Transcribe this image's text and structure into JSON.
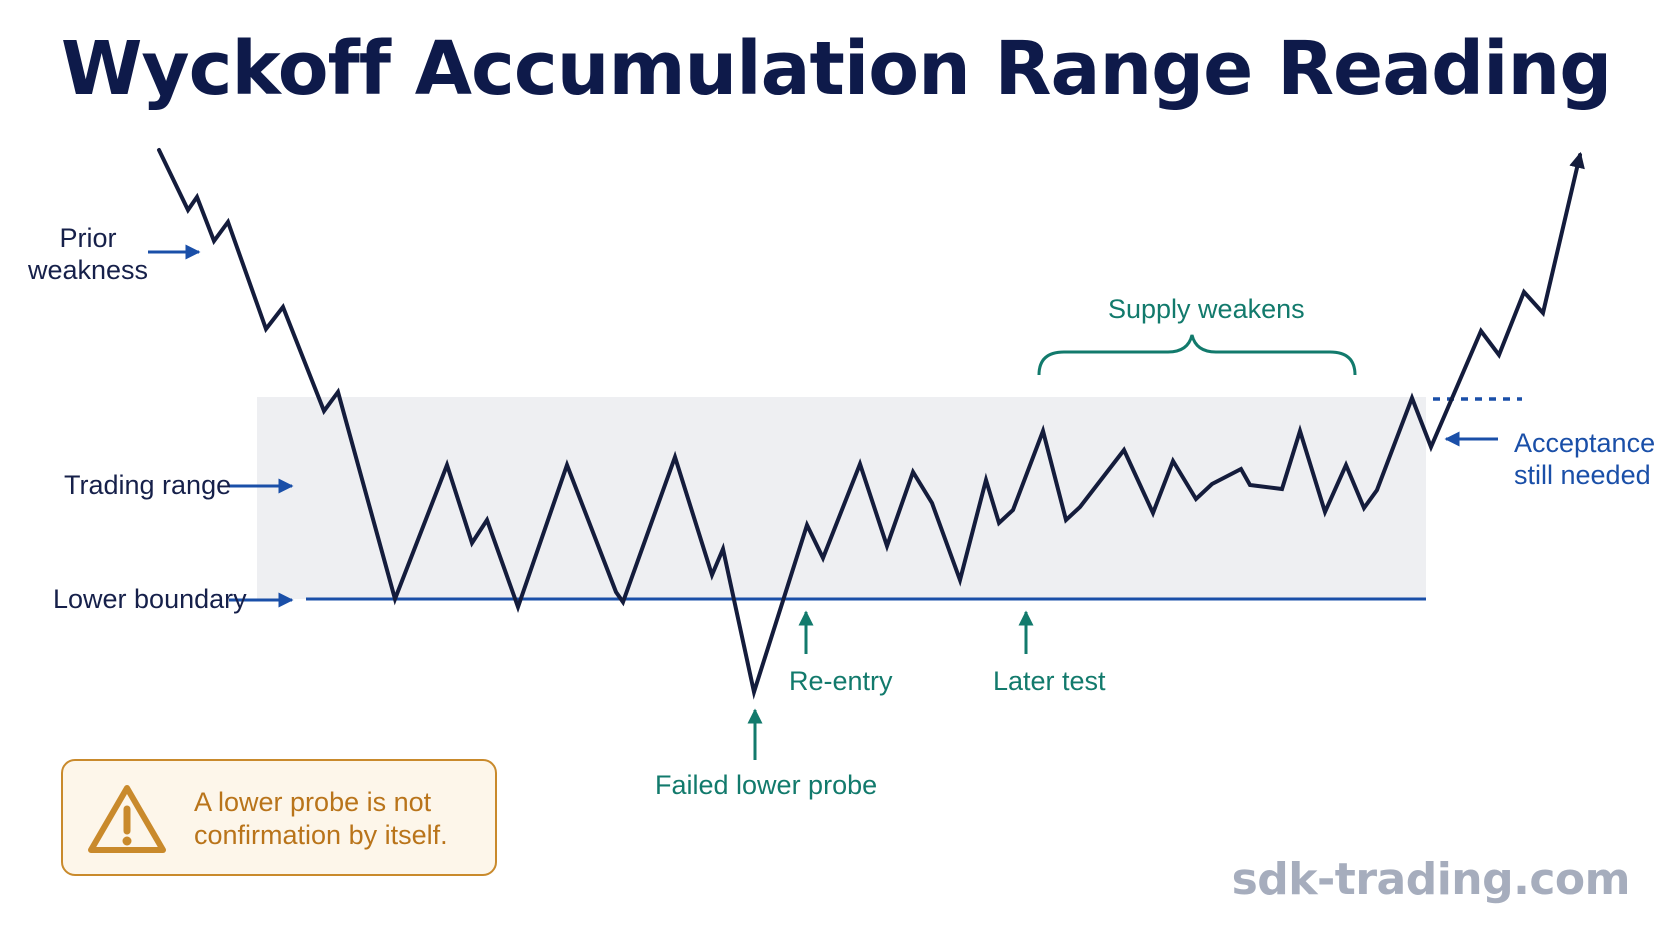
{
  "title": "Wyckoff Accumulation Range Reading",
  "labels": {
    "prior_weakness": "Prior weakness",
    "trading_range": "Trading range",
    "lower_boundary": "Lower boundary",
    "supply_weakens": "Supply weakens",
    "acceptance": "Acceptance still needed",
    "reentry": "Re-entry",
    "later_test": "Later test",
    "failed_probe": "Failed lower probe"
  },
  "warning": {
    "icon": "warning-triangle-icon",
    "text": "A lower probe is not confirmation by itself."
  },
  "watermark": "sdk-trading.com",
  "colors": {
    "title": "#0e1a4a",
    "price_line": "#141c3c",
    "boundary_line": "#1a4fa8",
    "range_fill": "#eeeff2",
    "teal_annotation": "#127a6c",
    "warning": "#c98a2c"
  }
}
